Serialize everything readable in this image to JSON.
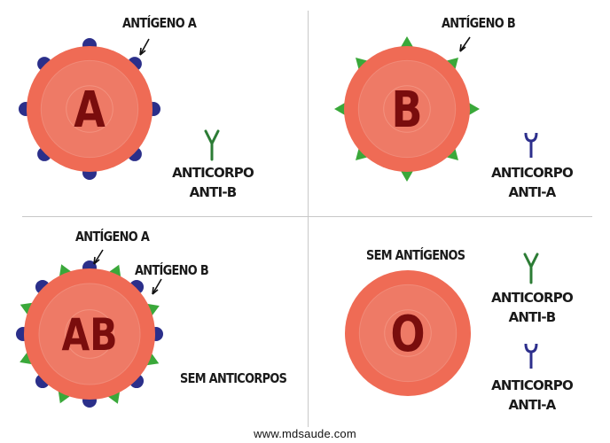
{
  "colors": {
    "cell_outer": "#ef6b55",
    "cell_inner": "#ee7a66",
    "cell_letter": "#7a0d0d",
    "antigen_a": "#2b2f8a",
    "antigen_b": "#3aa83a",
    "antibody_anti_b": "#2c7c35",
    "antibody_anti_a": "#2d2f8c"
  },
  "panels": [
    {
      "id": "A",
      "cell_letter": "A",
      "antigen_labels": [
        "ANTÍGENO A"
      ],
      "antigens": [
        "antigen-a"
      ],
      "antibody": {
        "line1": "ANTICORPO",
        "line2": "ANTI-B",
        "icon": "y-shaped-antibody-icon"
      }
    },
    {
      "id": "B",
      "cell_letter": "B",
      "antigen_labels": [
        "ANTÍGENO B"
      ],
      "antigens": [
        "antigen-b"
      ],
      "antibody": {
        "line1": "ANTICORPO",
        "line2": "ANTI-A",
        "icon": "cup-shaped-antibody-icon"
      }
    },
    {
      "id": "AB",
      "cell_letter": "AB",
      "antigen_labels": [
        "ANTÍGENO A",
        "ANTÍGENO B"
      ],
      "antigens": [
        "antigen-a",
        "antigen-b"
      ],
      "antibody_text": "SEM ANTICORPOS"
    },
    {
      "id": "O",
      "cell_letter": "O",
      "antigen_text": "SEM ANTÍGENOS",
      "antibodies": [
        {
          "line1": "ANTICORPO",
          "line2": "ANTI-B",
          "icon": "y-shaped-antibody-icon"
        },
        {
          "line1": "ANTICORPO",
          "line2": "ANTI-A",
          "icon": "cup-shaped-antibody-icon"
        }
      ]
    }
  ],
  "footer": "www.mdsaude.com"
}
